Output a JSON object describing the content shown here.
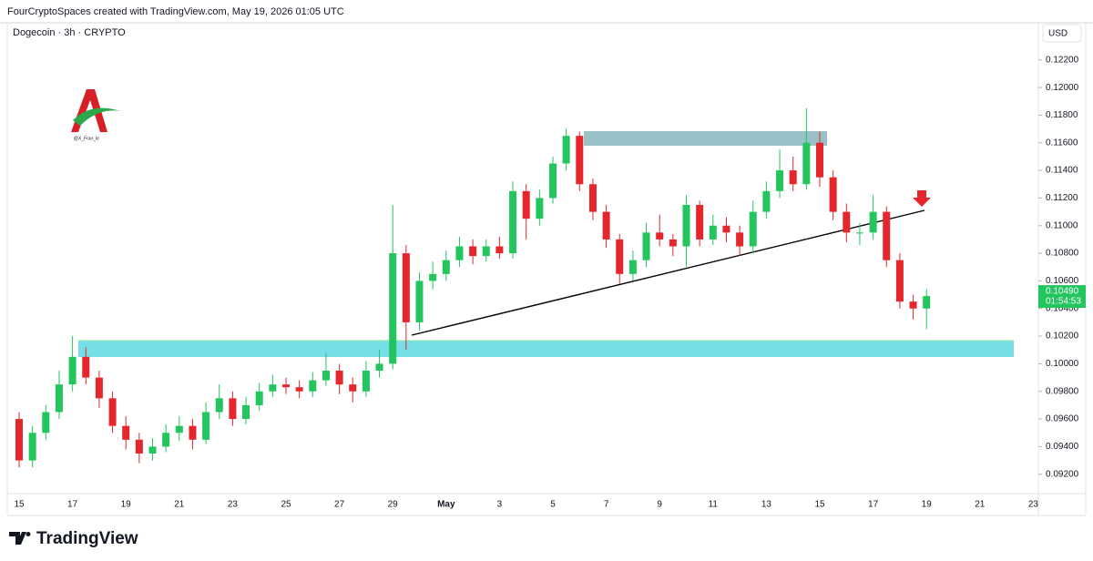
{
  "header": {
    "attribution": "FourCryptoSpaces created with TradingView.com, May 19, 2026 01:05 UTC"
  },
  "chart_data": {
    "type": "candlestick",
    "title": "Dogecoin · 3h · CRYPTO",
    "currency": "USD",
    "categories": [
      "15",
      null,
      null,
      null,
      "17",
      null,
      null,
      null,
      "19",
      null,
      null,
      null,
      "21",
      null,
      null,
      null,
      "23",
      null,
      null,
      null,
      "25",
      null,
      null,
      null,
      "27",
      null,
      null,
      null,
      "29",
      null,
      null,
      null,
      "May",
      null,
      null,
      null,
      "3",
      null,
      null,
      null,
      "5",
      null,
      null,
      null,
      "7",
      null,
      null,
      null,
      "9",
      null,
      null,
      null,
      "11",
      null,
      null,
      null,
      "13",
      null,
      null,
      null,
      "15",
      null,
      null,
      null,
      "17",
      null,
      null,
      null,
      "19",
      null,
      null,
      null,
      "21",
      null,
      null,
      null,
      "23"
    ],
    "open": [
      0.096,
      0.093,
      0.095,
      0.0965,
      0.0985,
      0.1005,
      0.099,
      0.0975,
      0.0955,
      0.0945,
      0.0935,
      0.094,
      0.095,
      0.0955,
      0.0945,
      0.0965,
      0.0975,
      0.096,
      0.097,
      0.098,
      0.0985,
      0.0983,
      0.098,
      0.0988,
      0.0995,
      0.0985,
      0.098,
      0.0995,
      0.1,
      0.108,
      0.103,
      0.106,
      0.1065,
      0.1075,
      0.1085,
      0.1078,
      0.1085,
      0.108,
      0.1125,
      0.1105,
      0.112,
      0.1145,
      0.1165,
      0.113,
      0.111,
      0.109,
      0.1065,
      0.1075,
      0.1095,
      0.109,
      0.1085,
      0.1115,
      0.109,
      0.11,
      0.1095,
      0.1085,
      0.111,
      0.1125,
      0.114,
      0.113,
      0.116,
      0.1135,
      0.111,
      0.1095,
      0.1095,
      0.111,
      0.1075,
      0.1045,
      0.104,
      null,
      null,
      null,
      null,
      null,
      null,
      null,
      null
    ],
    "high": [
      0.0965,
      0.0955,
      0.097,
      0.0995,
      0.102,
      0.1012,
      0.0995,
      0.098,
      0.0962,
      0.095,
      0.0946,
      0.0956,
      0.0962,
      0.096,
      0.0972,
      0.0985,
      0.098,
      0.0976,
      0.0986,
      0.0992,
      0.099,
      0.0988,
      0.0994,
      0.1008,
      0.1,
      0.099,
      0.1002,
      0.101,
      0.1115,
      0.1086,
      0.1066,
      0.1074,
      0.1082,
      0.1092,
      0.109,
      0.109,
      0.1092,
      0.1132,
      0.113,
      0.1126,
      0.115,
      0.117,
      0.1168,
      0.1134,
      0.1115,
      0.1094,
      0.1082,
      0.1102,
      0.1108,
      0.1094,
      0.1122,
      0.1118,
      0.1108,
      0.1106,
      0.11,
      0.1118,
      0.1132,
      0.1155,
      0.115,
      0.1185,
      0.1168,
      0.114,
      0.1116,
      0.1102,
      0.1122,
      0.1114,
      0.108,
      0.105,
      0.1054,
      null,
      null,
      null,
      null,
      null,
      null,
      null,
      null
    ],
    "low": [
      0.0925,
      0.0925,
      0.0945,
      0.096,
      0.098,
      0.0985,
      0.0968,
      0.095,
      0.0938,
      0.0928,
      0.093,
      0.0936,
      0.0944,
      0.0938,
      0.0942,
      0.096,
      0.0955,
      0.0956,
      0.0966,
      0.0976,
      0.0978,
      0.0975,
      0.0976,
      0.0984,
      0.0978,
      0.0972,
      0.0976,
      0.099,
      0.0996,
      0.101,
      0.1024,
      0.1054,
      0.106,
      0.107,
      0.1072,
      0.1074,
      0.1076,
      0.1076,
      0.109,
      0.11,
      0.1116,
      0.114,
      0.1125,
      0.1104,
      0.1084,
      0.1058,
      0.106,
      0.107,
      0.1085,
      0.1078,
      0.107,
      0.1085,
      0.1086,
      0.1088,
      0.1078,
      0.108,
      0.1105,
      0.112,
      0.1125,
      0.1126,
      0.1128,
      0.1104,
      0.1088,
      0.1086,
      0.109,
      0.107,
      0.104,
      0.1032,
      0.1025,
      null,
      null,
      null,
      null,
      null,
      null,
      null,
      null
    ],
    "close": [
      0.093,
      0.095,
      0.0965,
      0.0985,
      0.1005,
      0.099,
      0.0975,
      0.0955,
      0.0945,
      0.0935,
      0.094,
      0.095,
      0.0955,
      0.0945,
      0.0965,
      0.0975,
      0.096,
      0.097,
      0.098,
      0.0985,
      0.0983,
      0.098,
      0.0988,
      0.0995,
      0.0985,
      0.098,
      0.0995,
      0.1,
      0.108,
      0.103,
      0.106,
      0.1065,
      0.1075,
      0.1085,
      0.1078,
      0.1085,
      0.108,
      0.1125,
      0.1105,
      0.112,
      0.1145,
      0.1165,
      0.113,
      0.111,
      0.109,
      0.1065,
      0.1075,
      0.1095,
      0.109,
      0.1085,
      0.1115,
      0.109,
      0.11,
      0.1095,
      0.1085,
      0.111,
      0.1125,
      0.114,
      0.113,
      0.116,
      0.1135,
      0.111,
      0.1095,
      0.1095,
      0.111,
      0.1075,
      0.1045,
      0.104,
      0.1049,
      null,
      null,
      null,
      null,
      null,
      null,
      null,
      null
    ],
    "up_color": "#22c55e",
    "down_color": "#e5262d",
    "ylim": [
      0.0904,
      0.1237
    ],
    "yticks": [
      {
        "value": 0.092,
        "label": "0.09200"
      },
      {
        "value": 0.094,
        "label": "0.09400"
      },
      {
        "value": 0.096,
        "label": "0.09600"
      },
      {
        "value": 0.098,
        "label": "0.09800"
      },
      {
        "value": 0.1,
        "label": "0.10000"
      },
      {
        "value": 0.102,
        "label": "0.10200"
      },
      {
        "value": 0.104,
        "label": "0.10400"
      },
      {
        "value": 0.106,
        "label": "0.10600"
      },
      {
        "value": 0.108,
        "label": "0.10800"
      },
      {
        "value": 0.11,
        "label": "0.11000"
      },
      {
        "value": 0.112,
        "label": "0.11200"
      },
      {
        "value": 0.114,
        "label": "0.11400"
      },
      {
        "value": 0.116,
        "label": "0.11600"
      },
      {
        "value": 0.118,
        "label": "0.11800"
      },
      {
        "value": 0.12,
        "label": "0.12000"
      },
      {
        "value": 0.122,
        "label": "0.12200"
      }
    ],
    "last_price": {
      "value": 0.1049,
      "label": "0.10490"
    },
    "countdown": "01:54:53",
    "watermark": "@X_Four_kr"
  },
  "footer": {
    "brand": "TradingView"
  }
}
